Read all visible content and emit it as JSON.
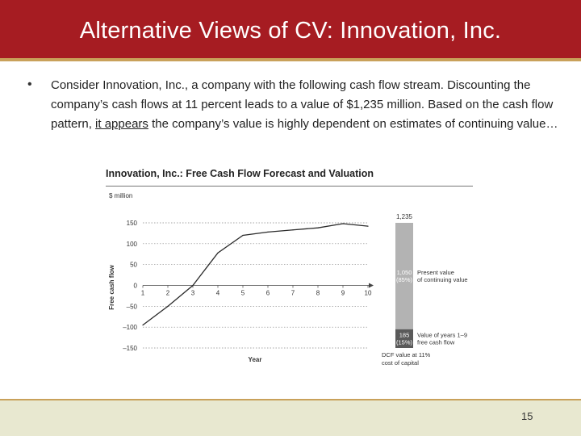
{
  "slide": {
    "title": "Alternative Views of CV: Innovation, Inc.",
    "bullet_part1": "Consider Innovation, Inc., a company with the following cash flow stream.  Discounting the company’s cash flows at 11 percent leads to a value of $1,235 million. Based on the cash flow pattern, ",
    "bullet_underlined": "it appears",
    "bullet_part2": " the company’s value is highly dependent on estimates of continuing value…",
    "page_number": "15"
  },
  "chart_data": {
    "type": "line",
    "title": "Innovation, Inc.: Free Cash Flow Forecast and Valuation",
    "unit_label": "$ million",
    "ylabel": "Free cash flow",
    "xlabel": "Year",
    "x": [
      1,
      2,
      3,
      4,
      5,
      6,
      7,
      8,
      9,
      10
    ],
    "x_tick_labels": [
      "1",
      "2",
      "3",
      "4",
      "5",
      "6",
      "7",
      "8",
      "9",
      "10"
    ],
    "series": [
      {
        "values": [
          -95,
          -50,
          0,
          78,
          120,
          128,
          133,
          138,
          148,
          142
        ]
      }
    ],
    "ylim": [
      -150,
      150
    ],
    "y_ticks": [
      150,
      100,
      50,
      0,
      -50,
      -100,
      -150
    ],
    "y_tick_labels": [
      "150",
      "100",
      "50",
      "0",
      "–50",
      "–100",
      "–150"
    ],
    "grid": true,
    "valuation_bar": {
      "total_label": "1,235",
      "total": 1235,
      "segments": [
        {
          "value": 1050,
          "value_label": "1,050",
          "pct_label": "(85%)",
          "label_line1": "Present value",
          "label_line2": "of continuing value",
          "color": "#b3b3b3"
        },
        {
          "value": 185,
          "value_label": "185",
          "pct_label": "(15%)",
          "label_line1": "Value of years 1–9",
          "label_line2": "free cash flow",
          "color": "#5a5a5a"
        }
      ],
      "caption_line1": "DCF value at 11%",
      "caption_line2": "cost of capital"
    },
    "colors": {
      "line": "#2a2a2a",
      "grid": "#888888",
      "text": "#333333"
    }
  }
}
